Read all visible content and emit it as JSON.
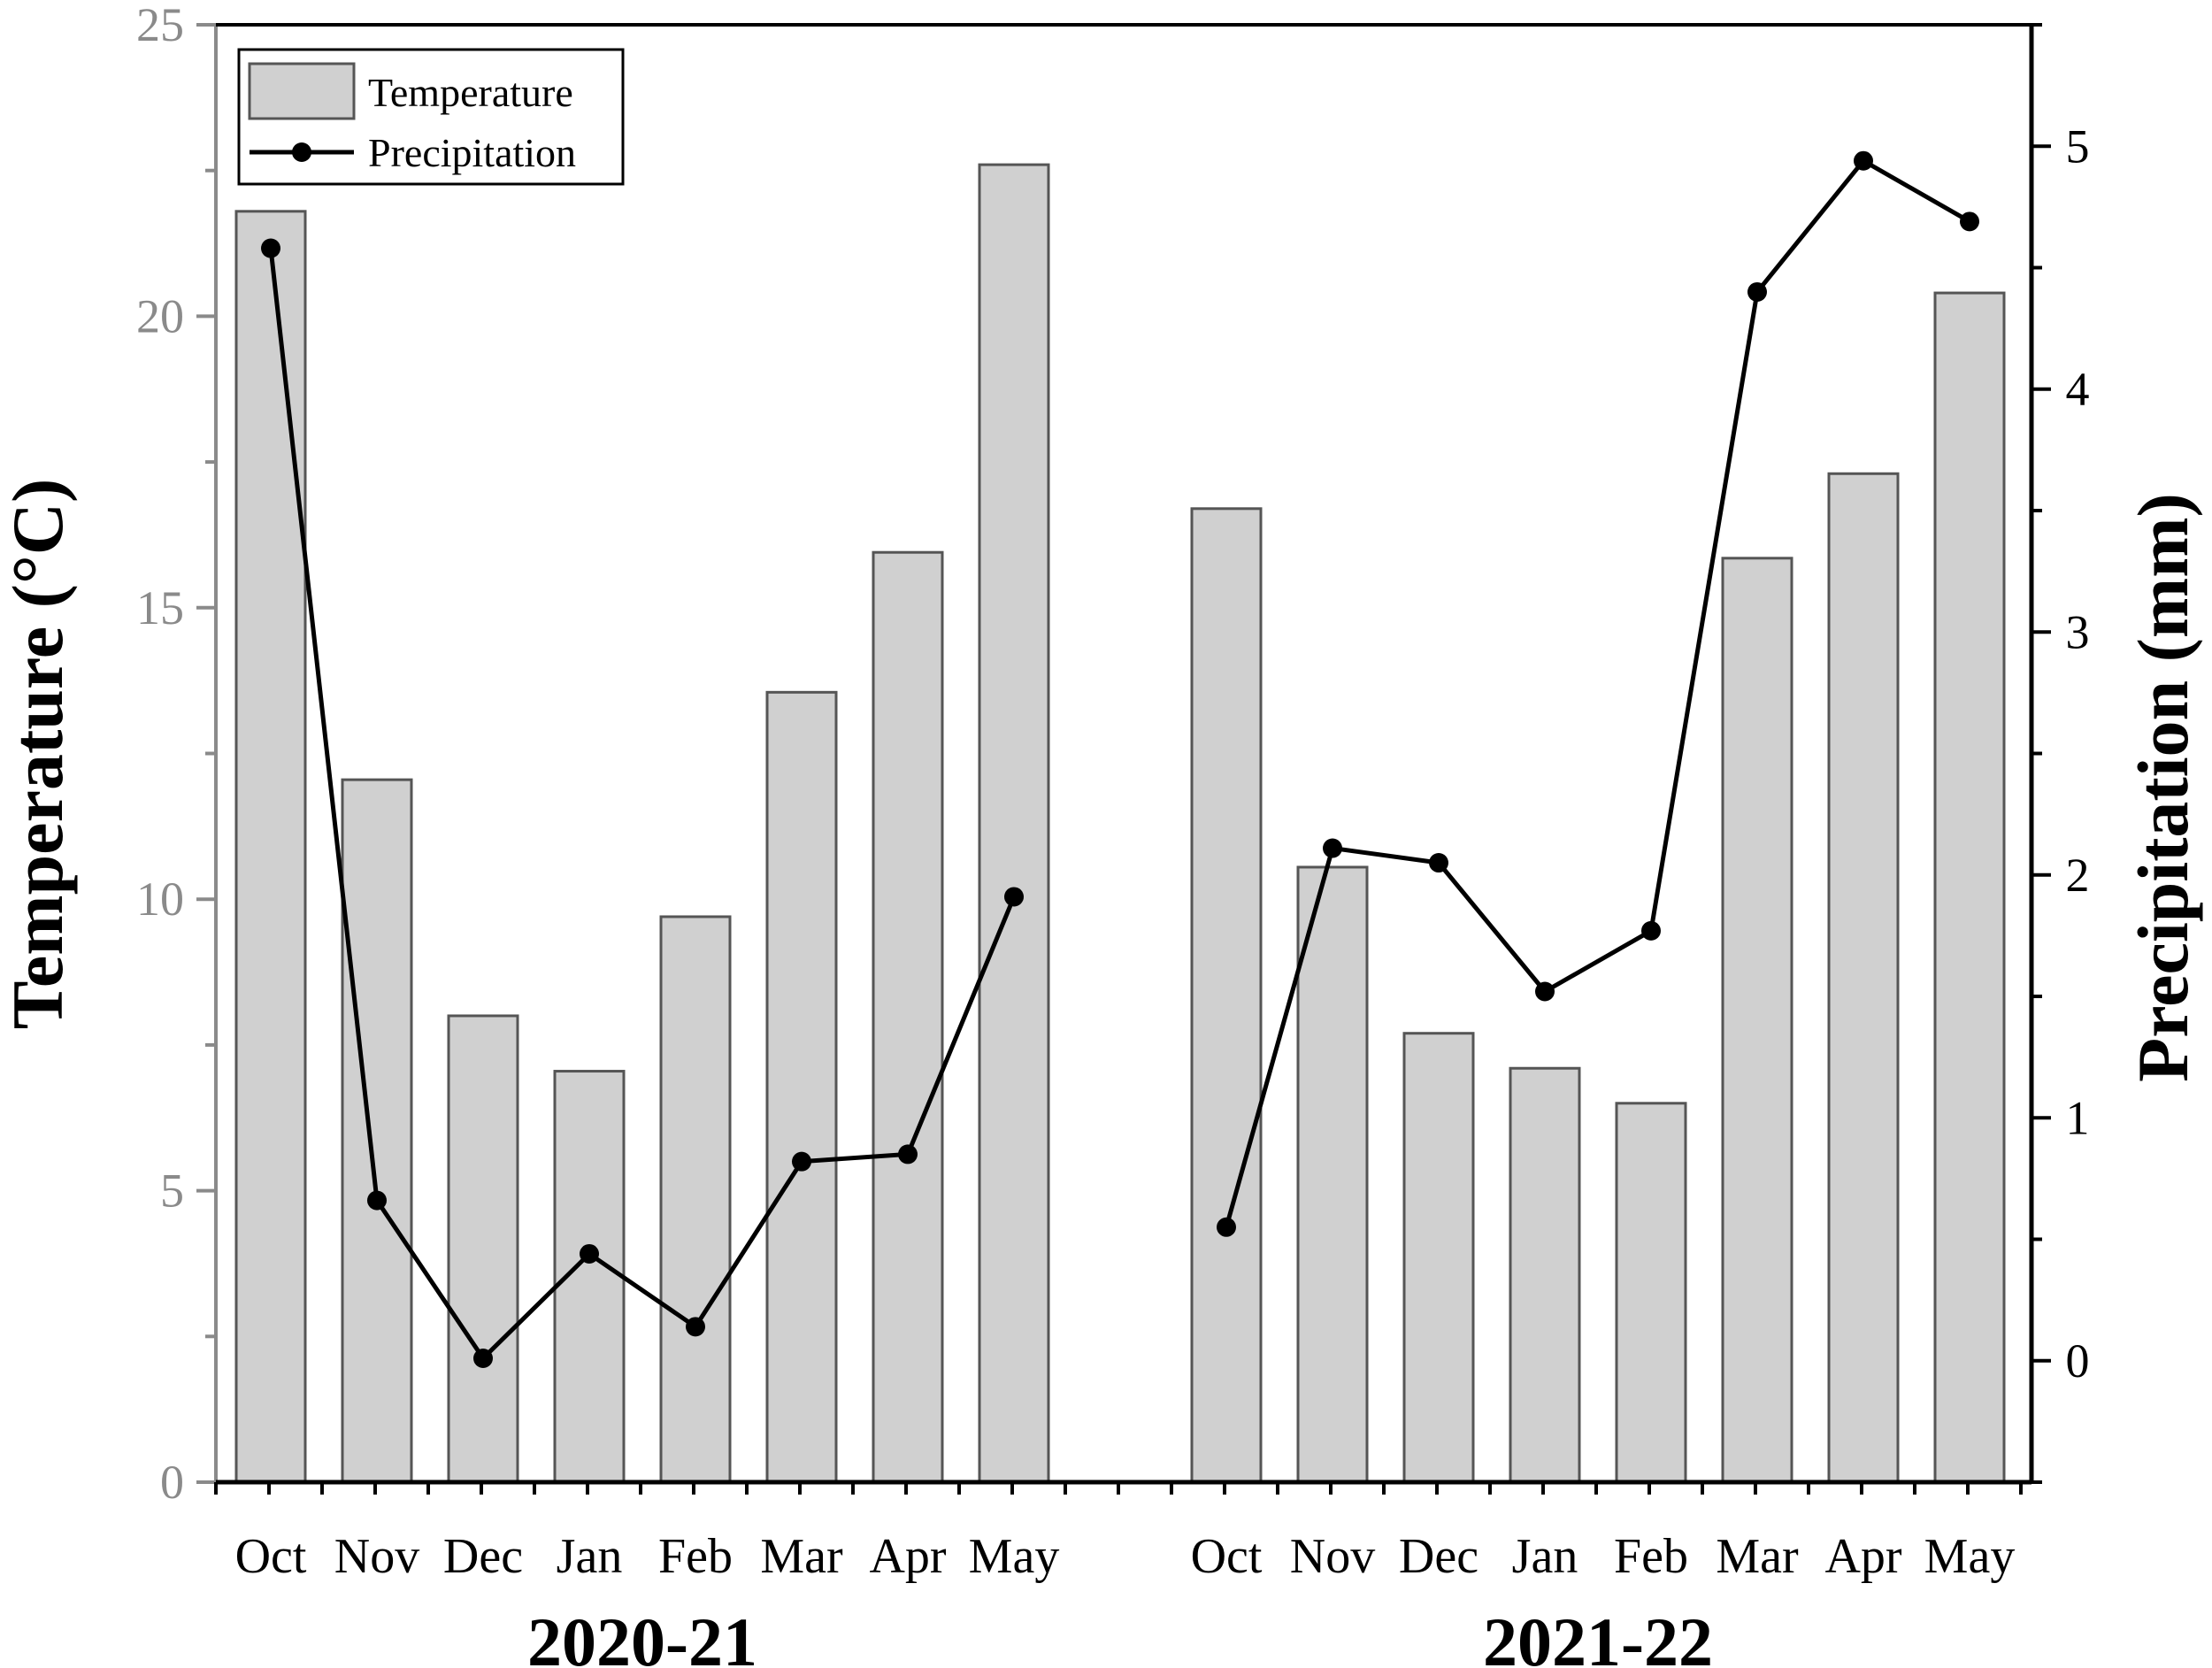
{
  "chart_data": {
    "type": "bar",
    "title": "",
    "y_left_label": "Temperature (°C)",
    "y_right_label": "Precipitation (mm)",
    "y_left_ticks": [
      "0",
      "5",
      "10",
      "15",
      "20",
      "25"
    ],
    "y_right_ticks": [
      "0",
      "1",
      "2",
      "3",
      "4",
      "5"
    ],
    "ylim_left": [
      0,
      25
    ],
    "ylim_right": [
      -0.5,
      5.5
    ],
    "grid": false,
    "legend": {
      "position": "top-left",
      "items": [
        "Temperature",
        "Precipitation"
      ]
    },
    "groups": [
      {
        "label": "2020-21",
        "categories": [
          "Oct",
          "Nov",
          "Dec",
          "Jan",
          "Feb",
          "Mar",
          "Apr",
          "May"
        ],
        "temperature": [
          21.8,
          12.05,
          8.0,
          7.05,
          9.7,
          13.55,
          15.95,
          22.6
        ],
        "precipitation": [
          4.58,
          0.66,
          0.01,
          0.44,
          0.14,
          0.82,
          0.85,
          1.91
        ]
      },
      {
        "label": "2021-22",
        "categories": [
          "Oct",
          "Nov",
          "Dec",
          "Jan",
          "Feb",
          "Mar",
          "Apr",
          "May"
        ],
        "temperature": [
          16.7,
          10.55,
          7.7,
          7.1,
          6.5,
          15.85,
          17.3,
          20.4
        ],
        "precipitation": [
          0.55,
          2.11,
          2.05,
          1.52,
          1.77,
          4.4,
          4.94,
          4.69
        ]
      }
    ],
    "colors": {
      "bar_fill": "#d0d0d0",
      "bar_stroke": "#555555",
      "line": "#000000",
      "left_axis": "#8a8a8a",
      "right_axis": "#000000"
    }
  }
}
